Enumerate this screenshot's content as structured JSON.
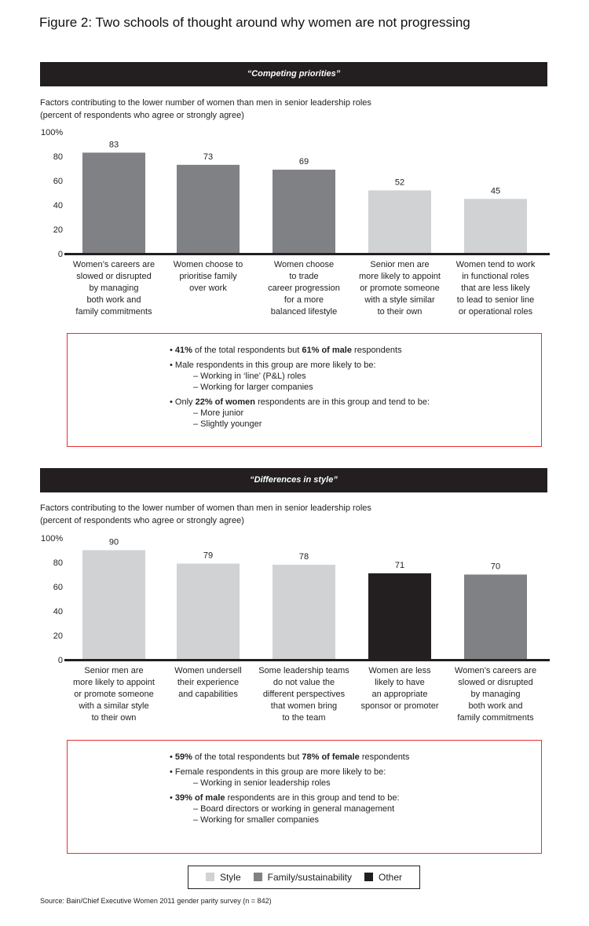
{
  "title": "Figure 2: Two schools of thought around why women are not progressing",
  "colors": {
    "Style": "#d1d2d4",
    "Family/sustainability": "#808184",
    "Other": "#231f20"
  },
  "chart_data": [
    {
      "type": "bar",
      "title": "“Competing priorities”",
      "subtitle1": "Factors contributing to the lower number of women than men in senior leadership roles",
      "subtitle2": "(percent of respondents who agree or strongly agree)",
      "ylim": [
        0,
        100
      ],
      "yticks": [
        "0",
        "20",
        "40",
        "60",
        "80",
        "100%"
      ],
      "categories": [
        [
          "Women’s careers are",
          "slowed or disrupted",
          "by managing",
          "both work and",
          "family commitments"
        ],
        [
          "Women choose to",
          "prioritise family",
          "over work"
        ],
        [
          "Women choose",
          "to trade",
          "career progression",
          "for a more",
          "balanced lifestyle"
        ],
        [
          "Senior men are",
          "more likely to appoint",
          "or promote someone",
          "with a style similar",
          "to their own"
        ],
        [
          "Women tend to work",
          "in functional roles",
          "that are less likely",
          "to lead to senior line",
          "or operational roles"
        ]
      ],
      "values": [
        83,
        73,
        69,
        52,
        45
      ],
      "groups": [
        "Family/sustainability",
        "Family/sustainability",
        "Family/sustainability",
        "Style",
        "Style"
      ]
    },
    {
      "type": "bar",
      "title": "“Differences in style”",
      "subtitle1": "Factors contributing to the lower number of women than men in senior leadership roles",
      "subtitle2": "(percent of respondents who agree or strongly agree)",
      "ylim": [
        0,
        100
      ],
      "yticks": [
        "0",
        "20",
        "40",
        "60",
        "80",
        "100%"
      ],
      "categories": [
        [
          "Senior men are",
          "more likely to appoint",
          "or promote someone",
          "with a similar style",
          "to their own"
        ],
        [
          "Women undersell",
          "their experience",
          "and capabilities"
        ],
        [
          "Some leadership teams",
          "do not value the",
          "different perspectives",
          "that women bring",
          "to the team"
        ],
        [
          "Women are less",
          "likely to have",
          "an appropriate",
          "sponsor or promoter"
        ],
        [
          "Women’s careers are",
          "slowed or disrupted",
          "by managing",
          "both work and",
          "family commitments"
        ]
      ],
      "values": [
        90,
        79,
        78,
        71,
        70
      ],
      "groups": [
        "Style",
        "Style",
        "Style",
        "Other",
        "Family/sustainability"
      ]
    }
  ],
  "box1": [
    {
      "b1": "41%",
      "t1": " of the total respondents but ",
      "b2": "61% of male",
      "t2": " respondents",
      "subs": []
    },
    {
      "b1": "",
      "t1": "Male respondents in this group are more likely to be:",
      "b2": "",
      "t2": "",
      "subs": [
        "– Working in ‘line’ (P&L) roles",
        "– Working for larger companies"
      ]
    },
    {
      "b1": "",
      "t1": "Only ",
      "b2": "22% of women",
      "t2": " respondents are in this group and tend to be:",
      "subs": [
        "– More junior",
        "– Slightly younger"
      ]
    }
  ],
  "box2": [
    {
      "b1": "59%",
      "t1": " of the total respondents but ",
      "b2": "78% of female",
      "t2": " respondents",
      "subs": []
    },
    {
      "b1": "",
      "t1": "Female respondents in this group are more likely to be:",
      "b2": "",
      "t2": "",
      "subs": [
        "– Working in senior leadership roles"
      ]
    },
    {
      "b1": "39% of male",
      "t1": " respondents are in this group and tend to be:",
      "b2": "",
      "t2": "",
      "subs": [
        "– Board directors or working in general management",
        "– Working for smaller companies"
      ]
    }
  ],
  "legend": [
    "Style",
    "Family/sustainability",
    "Other"
  ],
  "source": "Source: Bain/Chief Executive Women 2011 gender parity survey (n = 842)"
}
